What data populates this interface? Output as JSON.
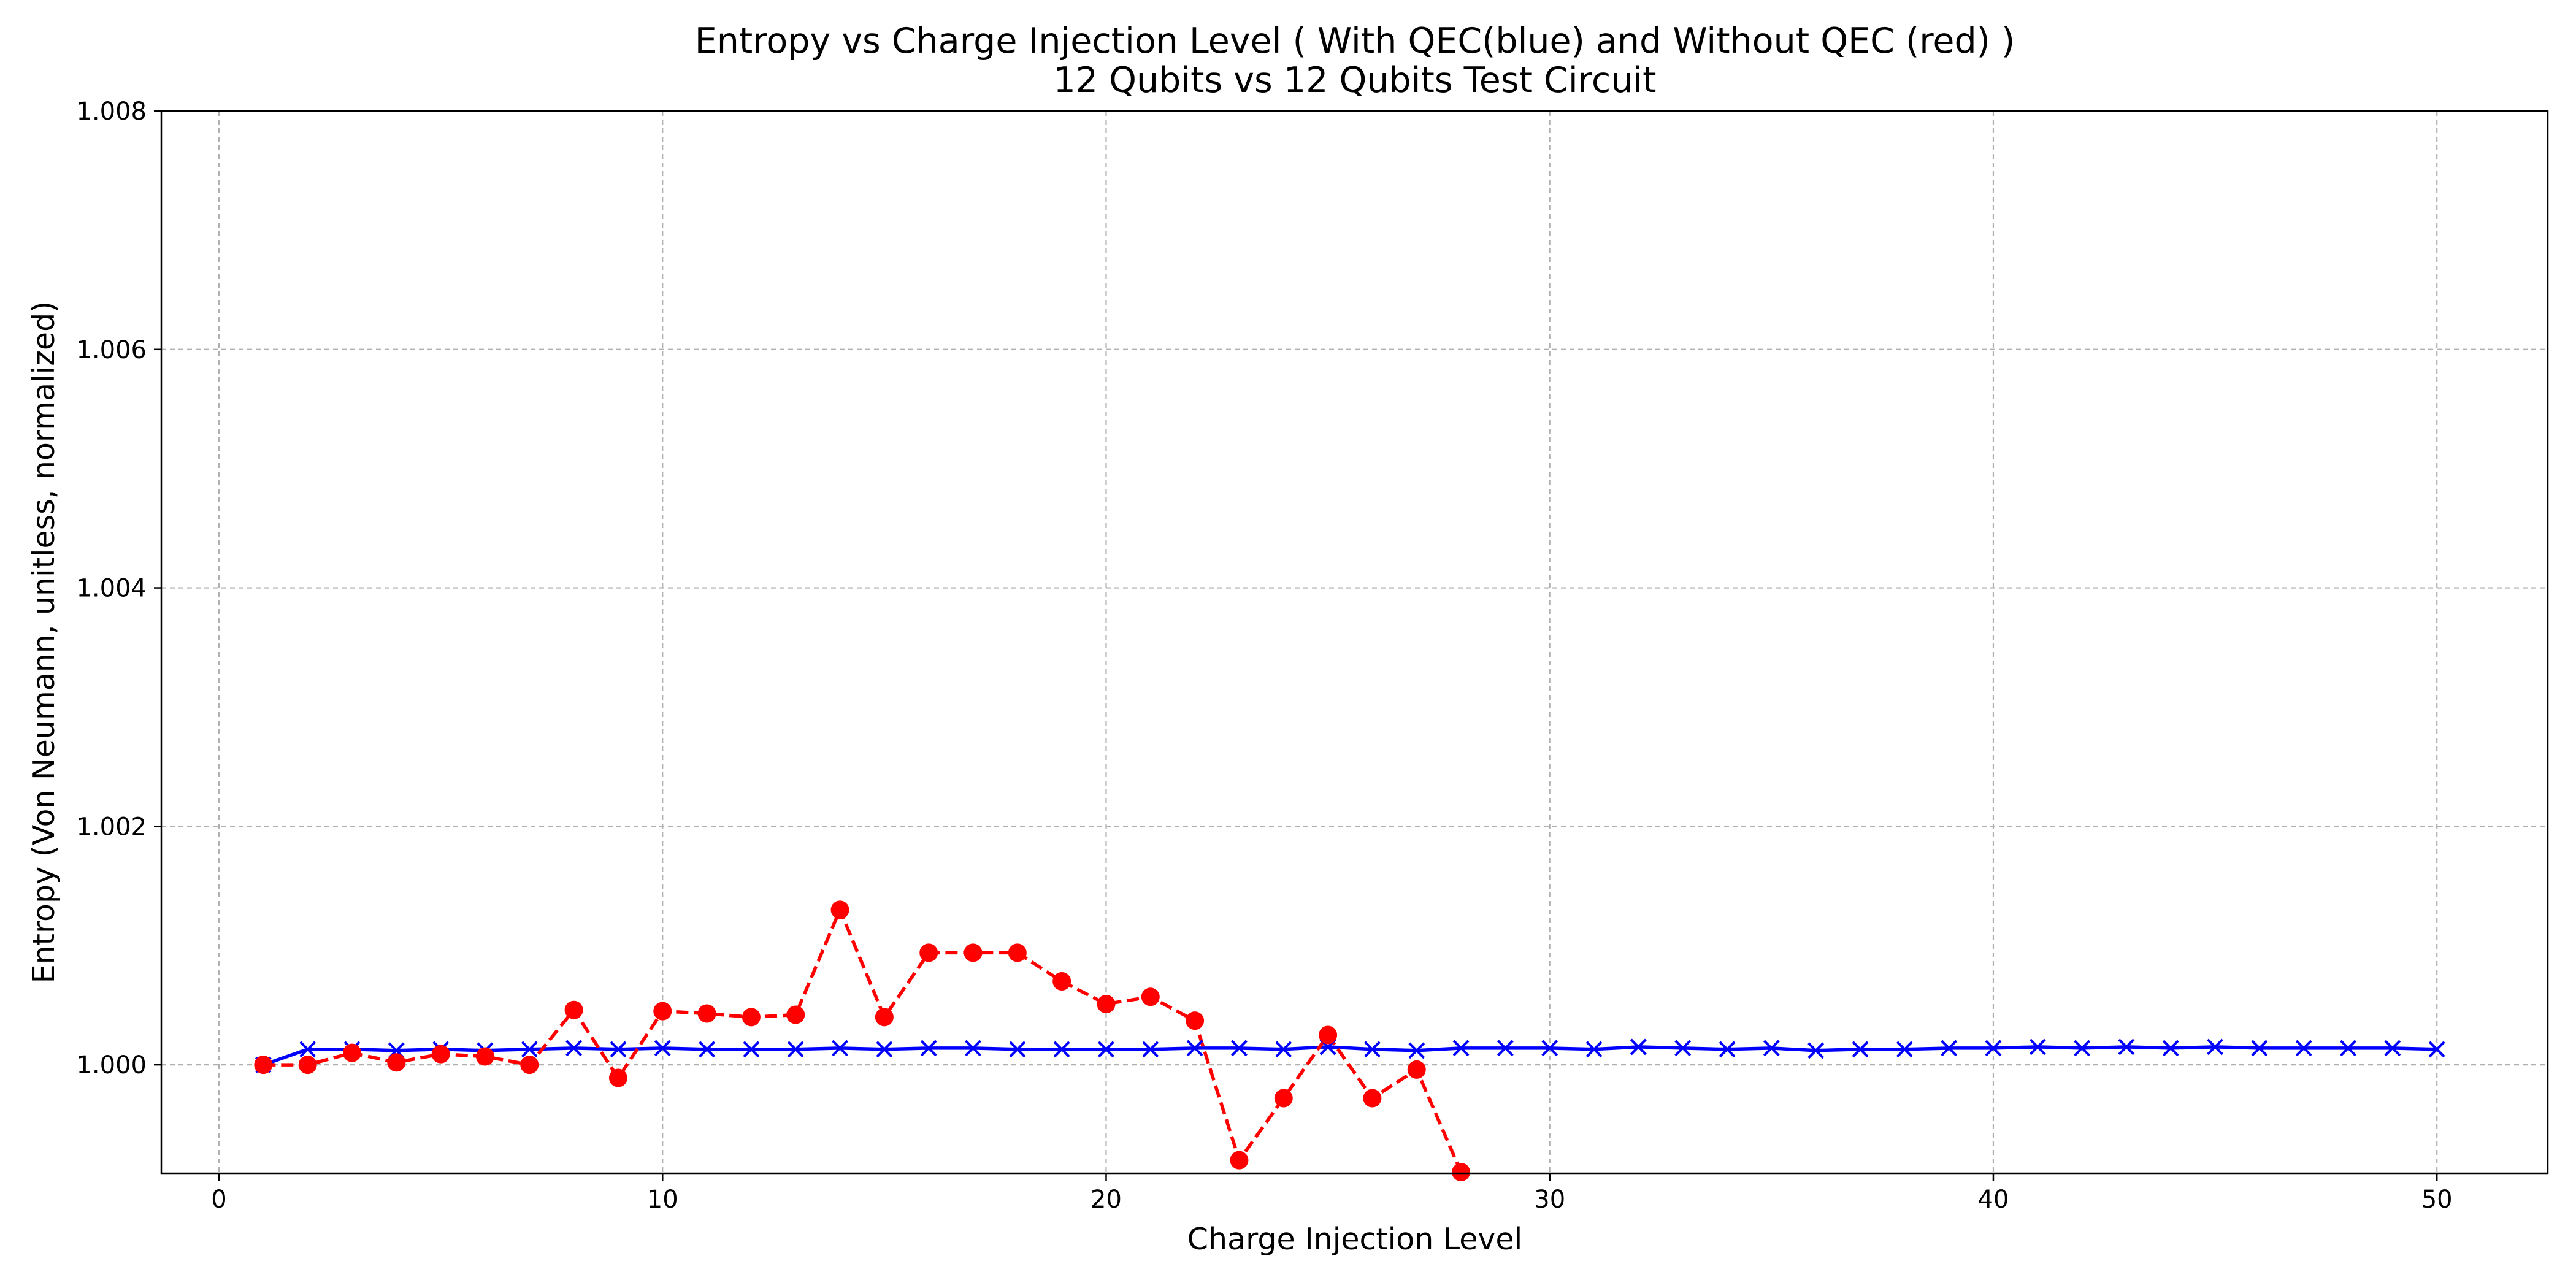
{
  "chart_data": {
    "type": "line",
    "title": "Entropy vs Charge Injection Level ( With QEC(blue) and Without QEC (red) )",
    "subtitle": "12 Qubits vs 12 Qubits Test Circuit",
    "xlabel": "Charge Injection Level",
    "ylabel": "Entropy (Von Neumann, unitless, normalized)",
    "xlim": [
      -1.3,
      52.5
    ],
    "ylim": [
      0.99909,
      1.008
    ],
    "xticks": [
      0,
      10,
      20,
      30,
      40,
      50
    ],
    "xtick_labels": [
      "0",
      "10",
      "20",
      "30",
      "40",
      "50"
    ],
    "yticks": [
      1.0,
      1.002,
      1.004,
      1.006,
      1.008
    ],
    "ytick_labels": [
      "1.000",
      "1.002",
      "1.004",
      "1.006",
      "1.008"
    ],
    "grid": true,
    "series": [
      {
        "color": "#0000ff",
        "marker": "x",
        "linestyle": "solid",
        "x": [
          1,
          2,
          3,
          4,
          5,
          6,
          7,
          8,
          9,
          10,
          11,
          12,
          13,
          14,
          15,
          16,
          17,
          18,
          19,
          20,
          21,
          22,
          23,
          24,
          25,
          26,
          27,
          28,
          29,
          30,
          31,
          32,
          33,
          34,
          35,
          36,
          37,
          38,
          39,
          40,
          41,
          42,
          43,
          44,
          45,
          46,
          47,
          48,
          49,
          50
        ],
        "values": [
          1.0,
          1.00013,
          1.00013,
          1.00012,
          1.00013,
          1.00012,
          1.00013,
          1.00014,
          1.00013,
          1.00014,
          1.00013,
          1.00013,
          1.00013,
          1.00014,
          1.00013,
          1.00014,
          1.00014,
          1.00013,
          1.00013,
          1.00013,
          1.00013,
          1.00014,
          1.00014,
          1.00013,
          1.00015,
          1.00013,
          1.00012,
          1.00014,
          1.00014,
          1.00014,
          1.00013,
          1.00015,
          1.00014,
          1.00013,
          1.00014,
          1.00012,
          1.00013,
          1.00013,
          1.00014,
          1.00014,
          1.00015,
          1.00014,
          1.00015,
          1.00014,
          1.00015,
          1.00014,
          1.00014,
          1.00014,
          1.00014,
          1.00013
        ]
      },
      {
        "color": "#ff0000",
        "marker": "o",
        "linestyle": "dashed",
        "x": [
          1,
          2,
          3,
          4,
          5,
          6,
          7,
          8,
          9,
          10,
          11,
          12,
          13,
          14,
          15,
          16,
          17,
          18,
          19,
          20,
          21,
          22,
          23,
          24,
          25,
          26,
          27,
          28
        ],
        "values": [
          1.0,
          1.0,
          1.0001,
          1.00002,
          1.00009,
          1.00007,
          1.0,
          1.00046,
          0.99989,
          1.00045,
          1.00043,
          1.0004,
          1.00042,
          1.0013,
          1.0004,
          1.00094,
          1.00094,
          1.00094,
          1.0007,
          1.00051,
          1.00057,
          1.00037,
          0.9992,
          0.99972,
          1.00025,
          0.99972,
          0.99996,
          0.9991
        ]
      }
    ]
  }
}
